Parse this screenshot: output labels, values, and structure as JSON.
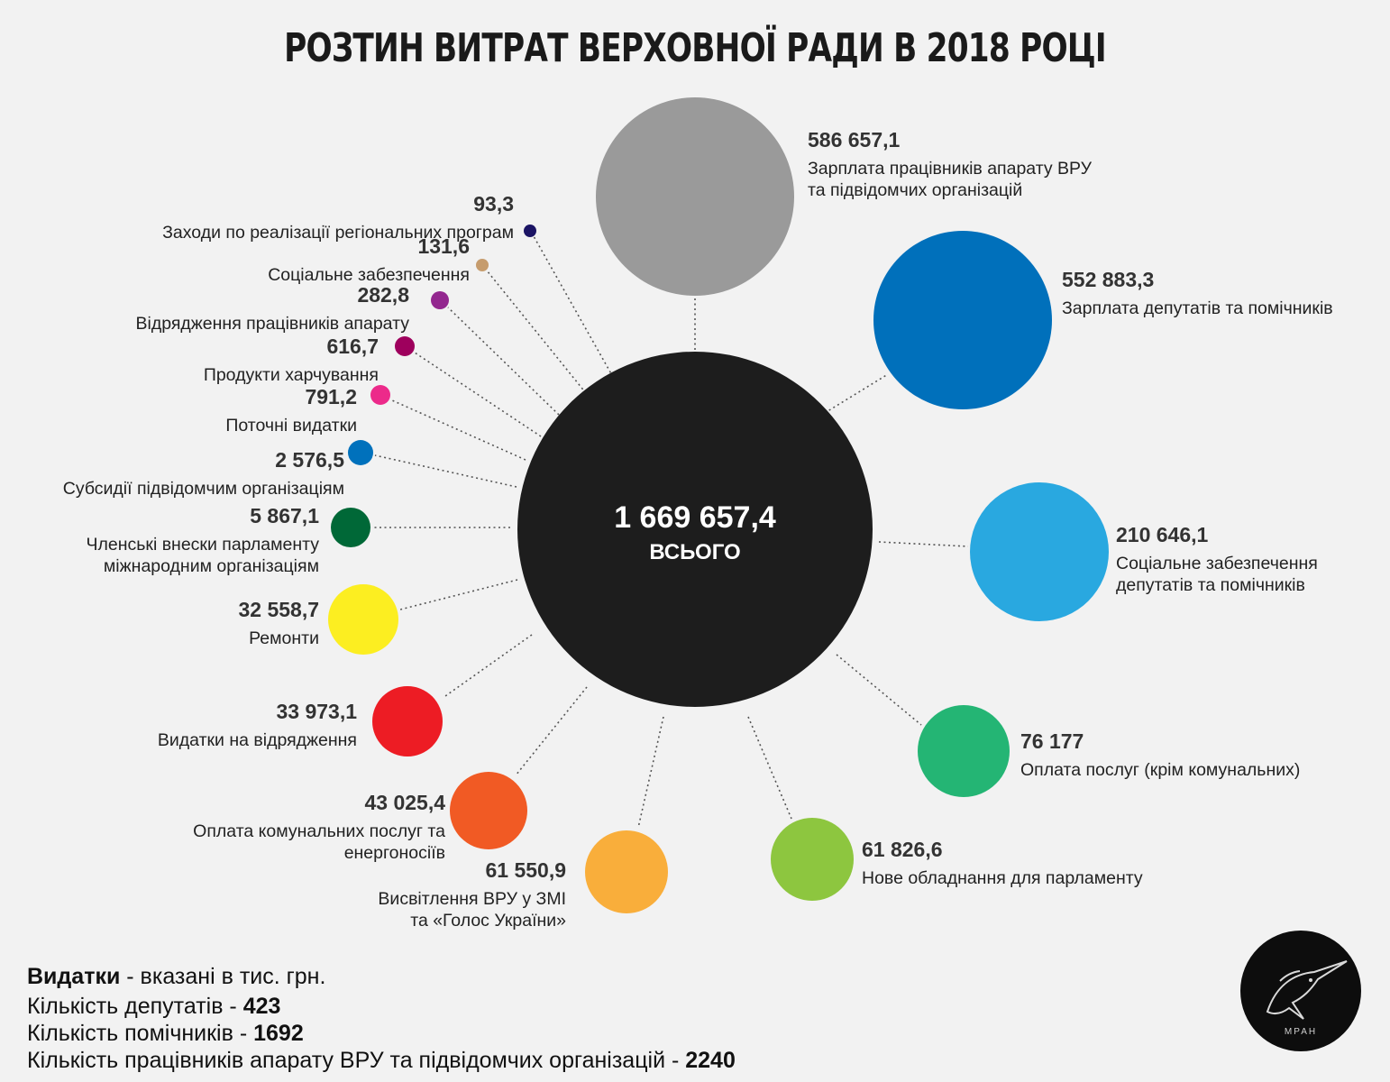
{
  "title": "РОЗТИН ВИТРАТ ВЕРХОВНОЇ РАДИ В 2018 РОЦІ",
  "total": {
    "value": "1 669 657,4",
    "label": "ВСЬОГО"
  },
  "chart_data": {
    "type": "bubble",
    "title": "РОЗТИН ВИТРАТ ВЕРХОВНОЇ РАДИ В 2018 РОЦІ",
    "unit": "тис. грн.",
    "total": 1669657.4,
    "items": [
      {
        "value": 586657.1,
        "display": "586 657,1",
        "label": [
          "Зарплата працівників апарату ВРУ",
          "та підвідомчих організацій"
        ],
        "color": "#9a9a9a"
      },
      {
        "value": 552883.3,
        "display": "552 883,3",
        "label": [
          "Зарплата депутатів та помічників"
        ],
        "color": "#0070bb"
      },
      {
        "value": 210646.1,
        "display": "210 646,1",
        "label": [
          "Соціальне забезпечення",
          "депутатів та помічників"
        ],
        "color": "#29a8e0"
      },
      {
        "value": 76177,
        "display": "76 177",
        "label": [
          "Оплата послуг (крім комунальних)"
        ],
        "color": "#24b574"
      },
      {
        "value": 61826.6,
        "display": "61 826,6",
        "label": [
          "Нове обладнання для парламенту"
        ],
        "color": "#8dc63f"
      },
      {
        "value": 61550.9,
        "display": "61 550,9",
        "label": [
          "Висвітлення ВРУ у ЗМІ",
          "та «Голос України»"
        ],
        "color": "#f9ae3b"
      },
      {
        "value": 43025.4,
        "display": "43 025,4",
        "label": [
          "Оплата комунальних послуг та",
          "енергоносіїв"
        ],
        "color": "#f15a24"
      },
      {
        "value": 33973.1,
        "display": "33 973,1",
        "label": [
          "Видатки на відрядження"
        ],
        "color": "#ed1c24"
      },
      {
        "value": 32558.7,
        "display": "32 558,7",
        "label": [
          "Ремонти"
        ],
        "color": "#fcee21"
      },
      {
        "value": 5867.1,
        "display": "5 867,1",
        "label": [
          "Членські внески парламенту",
          "міжнародним організаціям"
        ],
        "color": "#006837"
      },
      {
        "value": 2576.5,
        "display": "2 576,5",
        "label": [
          "Субсидії підвідомчим організаціям"
        ],
        "color": "#0071bc"
      },
      {
        "value": 791.2,
        "display": "791,2",
        "label": [
          "Поточні видатки"
        ],
        "color": "#ec2a8a"
      },
      {
        "value": 616.7,
        "display": "616,7",
        "label": [
          "Продукти харчування"
        ],
        "color": "#9e005d"
      },
      {
        "value": 282.8,
        "display": "282,8",
        "label": [
          "Відрядження працівників апарату"
        ],
        "color": "#93278f"
      },
      {
        "value": 131.6,
        "display": "131,6",
        "label": [
          "Соціальне забезпечення"
        ],
        "color": "#c69c6d"
      },
      {
        "value": 93.3,
        "display": "93,3",
        "label": [
          "Заходи по реалізації регіональних програм"
        ],
        "color": "#1b1464"
      }
    ]
  },
  "footer": {
    "line1": {
      "bold": "Видатки",
      "text": " - вказані в тис. грн."
    },
    "line2": {
      "text": "Кількість депутатів - ",
      "bold": "423"
    },
    "line3": {
      "text": "Кількість помічників - ",
      "bold": "1692"
    },
    "line4": {
      "text": "Кількість працівників апарату ВРУ та підвідомчих організацій - ",
      "bold": "2240"
    }
  },
  "logo": {
    "text": "МРАН"
  }
}
